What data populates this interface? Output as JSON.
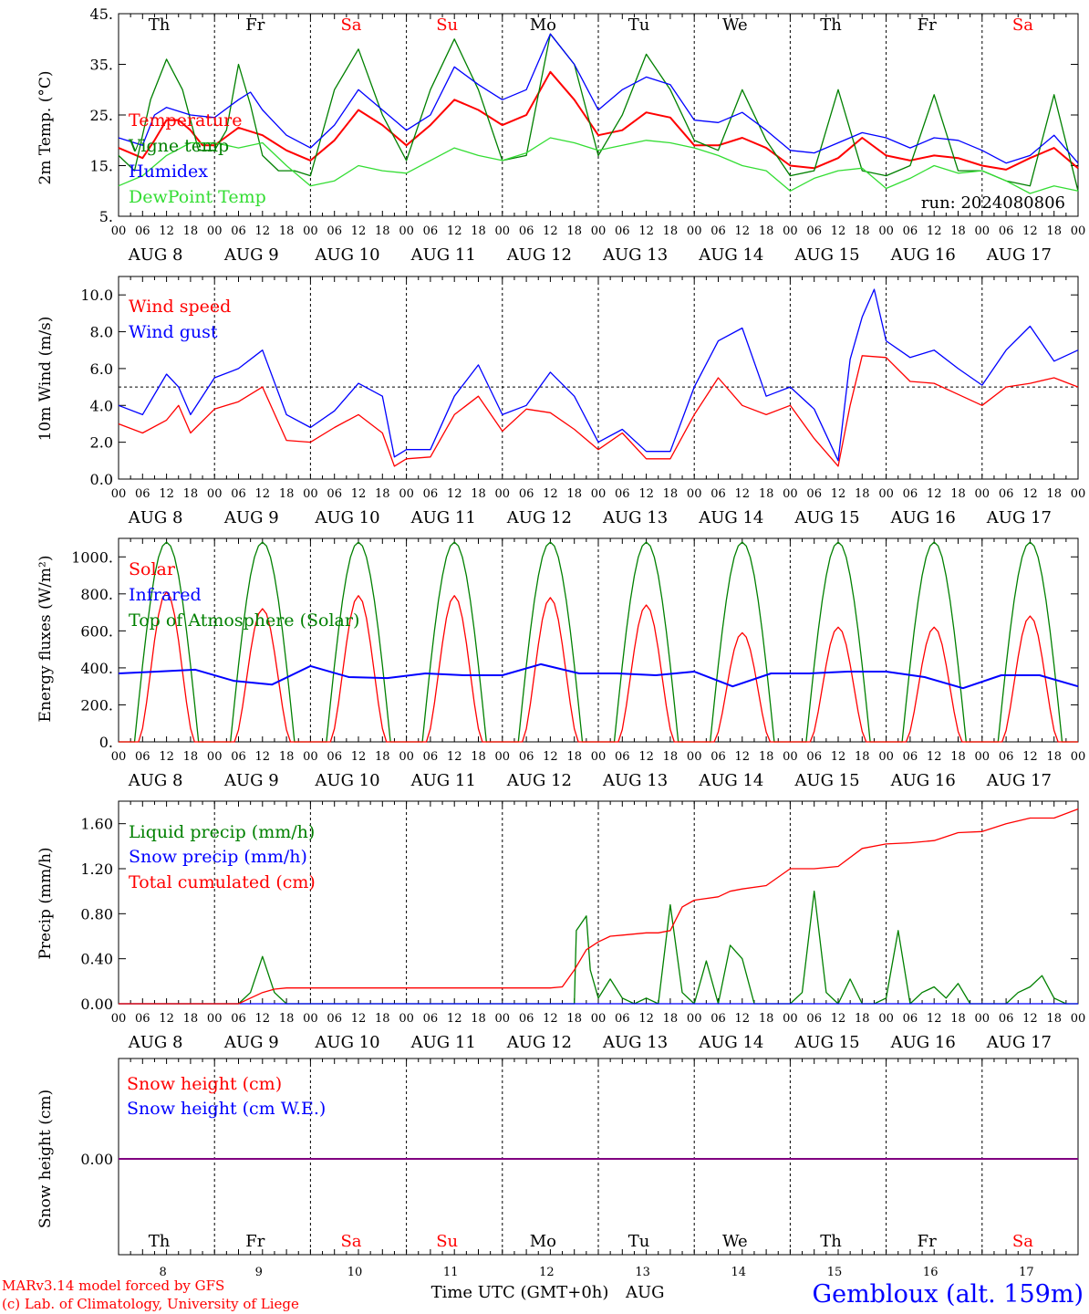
{
  "run_label": "run: 2024080806",
  "xtitle": "Time UTC (GMT+0h)",
  "month": "AUG",
  "credit": [
    "MARv3.14 model forced by GFS",
    "(c) Lab. of Climatology, University of Liege"
  ],
  "station": "Gembloux (alt. 159m)",
  "colors": {
    "red": "#ff0000",
    "blue": "#0000ff",
    "green": "#008000",
    "lightgreen": "#33dd33",
    "purple": "#800080",
    "black": "#000000"
  },
  "days": [
    {
      "name": "Th",
      "date": "AUG  8",
      "num": "8",
      "weekend": false
    },
    {
      "name": "Fr",
      "date": "AUG  9",
      "num": "9",
      "weekend": false
    },
    {
      "name": "Sa",
      "date": "AUG 10",
      "num": "10",
      "weekend": true
    },
    {
      "name": "Su",
      "date": "AUG 11",
      "num": "11",
      "weekend": true
    },
    {
      "name": "Mo",
      "date": "AUG 12",
      "num": "12",
      "weekend": false
    },
    {
      "name": "Tu",
      "date": "AUG 13",
      "num": "13",
      "weekend": false
    },
    {
      "name": "We",
      "date": "AUG 14",
      "num": "14",
      "weekend": false
    },
    {
      "name": "Th",
      "date": "AUG 15",
      "num": "15",
      "weekend": false
    },
    {
      "name": "Fr",
      "date": "AUG 16",
      "num": "16",
      "weekend": false
    },
    {
      "name": "Sa",
      "date": "AUG 17",
      "num": "17",
      "weekend": true
    }
  ],
  "hour_labels": [
    "00",
    "06",
    "12",
    "18"
  ],
  "chart_data": [
    {
      "type": "line",
      "id": "temperature",
      "ylabel": "2m Temp. (°C)",
      "ylim": [
        5,
        45
      ],
      "yticks": [
        "5.",
        "15.",
        "25.",
        "35.",
        "45."
      ],
      "series": [
        {
          "name": "Temperature",
          "color": "#ff0000",
          "x": [
            0,
            6,
            9,
            12,
            15,
            18,
            21,
            24,
            30,
            36,
            39,
            42,
            45,
            48,
            54,
            60,
            66,
            72,
            78,
            84,
            90,
            96,
            102,
            108,
            114,
            120,
            126,
            132,
            138,
            144,
            150,
            156,
            162,
            168,
            174,
            180,
            186,
            192,
            198,
            204,
            210,
            216,
            222,
            228,
            234,
            240
          ],
          "y": [
            18.5,
            16.5,
            20,
            24,
            24,
            22,
            19,
            19,
            22.5,
            21,
            19.5,
            18,
            17,
            16,
            20,
            26,
            23,
            19,
            23,
            28,
            26,
            23,
            25,
            33.5,
            28,
            21,
            22,
            25.5,
            24.5,
            19,
            19,
            20.5,
            18.5,
            15,
            14.5,
            16.5,
            20.5,
            17,
            16,
            17,
            16.5,
            15,
            14.2,
            16.5,
            18.5,
            14.5
          ]
        },
        {
          "name": "Vigne temp",
          "color": "#008000",
          "x": [
            0,
            4,
            8,
            12,
            16,
            20,
            24,
            27,
            30,
            33,
            36,
            40,
            44,
            48,
            54,
            60,
            66,
            72,
            78,
            84,
            90,
            96,
            102,
            108,
            114,
            120,
            126,
            132,
            138,
            144,
            150,
            156,
            162,
            168,
            174,
            180,
            186,
            192,
            198,
            204,
            210,
            216,
            222,
            228,
            234,
            240
          ],
          "y": [
            17,
            14,
            28,
            36,
            30,
            18,
            18,
            22,
            35,
            27,
            17,
            14,
            14,
            13,
            30,
            38,
            25,
            16,
            30,
            40,
            30,
            16,
            17,
            41,
            35,
            17,
            25,
            37,
            30,
            20,
            18,
            30,
            20,
            13,
            14,
            30,
            14,
            13,
            15,
            29,
            14,
            14,
            12,
            11,
            29,
            10
          ]
        },
        {
          "name": "Humidex",
          "color": "#0000ff",
          "x": [
            0,
            6,
            9,
            12,
            18,
            24,
            30,
            33,
            36,
            42,
            48,
            54,
            60,
            66,
            72,
            78,
            84,
            90,
            96,
            102,
            108,
            114,
            120,
            126,
            132,
            138,
            144,
            150,
            156,
            162,
            168,
            174,
            180,
            186,
            192,
            198,
            204,
            210,
            216,
            222,
            228,
            234,
            240
          ],
          "y": [
            20.5,
            19,
            25,
            26.5,
            25,
            24.5,
            28,
            29.5,
            26,
            21,
            18.5,
            23,
            30,
            26,
            22,
            25,
            34.5,
            31,
            28,
            30,
            41,
            35,
            26,
            30,
            32.5,
            31,
            24,
            23.5,
            25.5,
            22,
            18,
            17.5,
            19.5,
            21.5,
            20.5,
            18.5,
            20.5,
            20,
            18,
            15.5,
            17,
            21,
            15.5
          ]
        },
        {
          "name": "DewPoint Temp",
          "color": "#33dd33",
          "x": [
            0,
            6,
            12,
            18,
            24,
            30,
            36,
            42,
            48,
            54,
            60,
            66,
            72,
            78,
            84,
            90,
            96,
            102,
            108,
            114,
            120,
            126,
            132,
            138,
            144,
            150,
            156,
            162,
            168,
            174,
            180,
            186,
            192,
            198,
            204,
            210,
            216,
            222,
            228,
            234,
            240
          ],
          "y": [
            11,
            13,
            17,
            19.5,
            19.5,
            18.5,
            19.5,
            15,
            11,
            12,
            15,
            14,
            13.5,
            16,
            18.5,
            17,
            16,
            17.5,
            20.5,
            19.5,
            18,
            19,
            20,
            19.5,
            18.5,
            17,
            15,
            14,
            10,
            12.5,
            14,
            14.5,
            10.5,
            12.5,
            15,
            13.5,
            14,
            12,
            9.5,
            11,
            10
          ]
        }
      ]
    },
    {
      "type": "line",
      "id": "wind",
      "ylabel": "10m Wind (m/s)",
      "ylim": [
        0,
        11
      ],
      "yticks": [
        "0.0",
        "2.0",
        "4.0",
        "6.0",
        "8.0",
        "10.0"
      ],
      "ref_line": 5.0,
      "series": [
        {
          "name": "Wind speed",
          "color": "#ff0000",
          "x": [
            0,
            6,
            12,
            15,
            18,
            24,
            30,
            36,
            42,
            48,
            54,
            60,
            66,
            69,
            72,
            78,
            84,
            90,
            96,
            102,
            108,
            114,
            120,
            126,
            132,
            138,
            144,
            150,
            156,
            162,
            168,
            174,
            180,
            183,
            186,
            192,
            198,
            204,
            210,
            216,
            222,
            228,
            234,
            240
          ],
          "y": [
            3,
            2.5,
            3.2,
            4,
            2.5,
            3.8,
            4.2,
            5,
            2.1,
            2,
            2.8,
            3.5,
            2.5,
            0.7,
            1.1,
            1.2,
            3.5,
            4.5,
            2.6,
            3.8,
            3.6,
            2.7,
            1.6,
            2.5,
            1.1,
            1.1,
            3.5,
            5.5,
            4,
            3.5,
            4,
            2.2,
            0.7,
            4,
            6.7,
            6.6,
            5.3,
            5.2,
            4.6,
            4,
            5,
            5.2,
            5.5,
            5
          ]
        },
        {
          "name": "Wind gust",
          "color": "#0000ff",
          "x": [
            0,
            6,
            12,
            15,
            18,
            24,
            30,
            36,
            42,
            48,
            54,
            60,
            66,
            69,
            72,
            78,
            84,
            90,
            96,
            102,
            108,
            114,
            120,
            126,
            132,
            138,
            144,
            150,
            156,
            162,
            168,
            174,
            180,
            183,
            186,
            189,
            192,
            198,
            204,
            210,
            216,
            222,
            228,
            234,
            240
          ],
          "y": [
            4,
            3.5,
            5.7,
            5,
            3.5,
            5.5,
            6,
            7,
            3.5,
            2.8,
            3.7,
            5.2,
            4.5,
            1.2,
            1.6,
            1.6,
            4.5,
            6.2,
            3.5,
            4,
            5.8,
            4.5,
            2,
            2.7,
            1.5,
            1.5,
            5,
            7.5,
            8.2,
            4.5,
            5,
            3.8,
            1,
            6.5,
            8.8,
            10.3,
            7.5,
            6.6,
            7,
            6,
            5.1,
            7,
            8.3,
            6.4,
            7
          ]
        }
      ]
    },
    {
      "type": "line",
      "id": "energy",
      "ylabel": "Energy fluxes (W/m²)",
      "ylim": [
        0,
        1100
      ],
      "yticks": [
        "0.",
        "200.",
        "400.",
        "600.",
        "800.",
        "1000."
      ],
      "solar_peaks": [
        810,
        720,
        790,
        790,
        780,
        740,
        590,
        620,
        620,
        680
      ],
      "toa_peak": 1080,
      "infrared": [
        370,
        380,
        390,
        330,
        310,
        410,
        350,
        345,
        370,
        360,
        360,
        420,
        370,
        370,
        360,
        380,
        300,
        370,
        370,
        380,
        380,
        350,
        290,
        360,
        360,
        300
      ],
      "series_names": [
        "Solar",
        "Infrared",
        "Top of Atmosphere (Solar)"
      ],
      "series_colors": [
        "#ff0000",
        "#0000ff",
        "#008000"
      ]
    },
    {
      "type": "line",
      "id": "precip",
      "ylabel": "Precip (mm/h)",
      "ylim": [
        0,
        1.8
      ],
      "yticks": [
        "0.00",
        "0.40",
        "0.80",
        "1.20",
        "1.60"
      ],
      "series": [
        {
          "name": "Liquid precip (mm/h)",
          "color": "#008000",
          "x": [
            0,
            30,
            33,
            36,
            39,
            42,
            45,
            48,
            60,
            96,
            114,
            114.5,
            117,
            118,
            120,
            123,
            126,
            129,
            132,
            135,
            138,
            141,
            144,
            147,
            150,
            153,
            156,
            159,
            162,
            165,
            168,
            171,
            174,
            177,
            180,
            183,
            186,
            189,
            192,
            195,
            198,
            201,
            204,
            207,
            210,
            213,
            216,
            219,
            222,
            225,
            228,
            231,
            234,
            237,
            240
          ],
          "y": [
            0,
            0,
            0.1,
            0.42,
            0.1,
            0,
            0,
            0,
            0,
            0,
            0,
            0.65,
            0.78,
            0.3,
            0.05,
            0.22,
            0.05,
            0,
            0.05,
            0,
            0.88,
            0.1,
            0,
            0.38,
            0,
            0.52,
            0.4,
            0,
            0,
            0,
            0,
            0.1,
            1.0,
            0.1,
            0,
            0.22,
            0,
            0,
            0.05,
            0.65,
            0,
            0.1,
            0.15,
            0.05,
            0.18,
            0,
            0,
            0,
            0,
            0.1,
            0.15,
            0.25,
            0.05,
            0,
            0
          ]
        },
        {
          "name": "Snow precip (mm/h)",
          "color": "#0000ff",
          "x": [
            0,
            240
          ],
          "y": [
            0,
            0
          ]
        },
        {
          "name": "Total cumulated (cm)",
          "color": "#ff0000",
          "x": [
            0,
            30,
            33,
            36,
            39,
            42,
            48,
            60,
            96,
            108,
            111,
            114,
            117,
            120,
            123,
            126,
            132,
            135,
            138,
            141,
            144,
            150,
            153,
            156,
            162,
            168,
            174,
            180,
            186,
            192,
            198,
            204,
            210,
            216,
            222,
            228,
            234,
            240
          ],
          "y": [
            0,
            0,
            0.05,
            0.1,
            0.13,
            0.14,
            0.14,
            0.14,
            0.14,
            0.14,
            0.15,
            0.3,
            0.48,
            0.55,
            0.6,
            0.61,
            0.63,
            0.63,
            0.65,
            0.86,
            0.92,
            0.95,
            1.0,
            1.02,
            1.05,
            1.2,
            1.2,
            1.22,
            1.38,
            1.42,
            1.43,
            1.45,
            1.52,
            1.53,
            1.6,
            1.65,
            1.65,
            1.73
          ]
        }
      ]
    },
    {
      "type": "line",
      "id": "snow",
      "ylabel": "Snow height (cm)",
      "yticks": [
        "0.00"
      ],
      "series": [
        {
          "name": "Snow height (cm)",
          "color": "#ff0000",
          "x": [
            0,
            240
          ],
          "y": [
            0,
            0
          ]
        },
        {
          "name": "Snow height (cm W.E.)",
          "color": "#0000ff",
          "x": [
            0,
            240
          ],
          "y": [
            0,
            0
          ]
        }
      ]
    }
  ]
}
